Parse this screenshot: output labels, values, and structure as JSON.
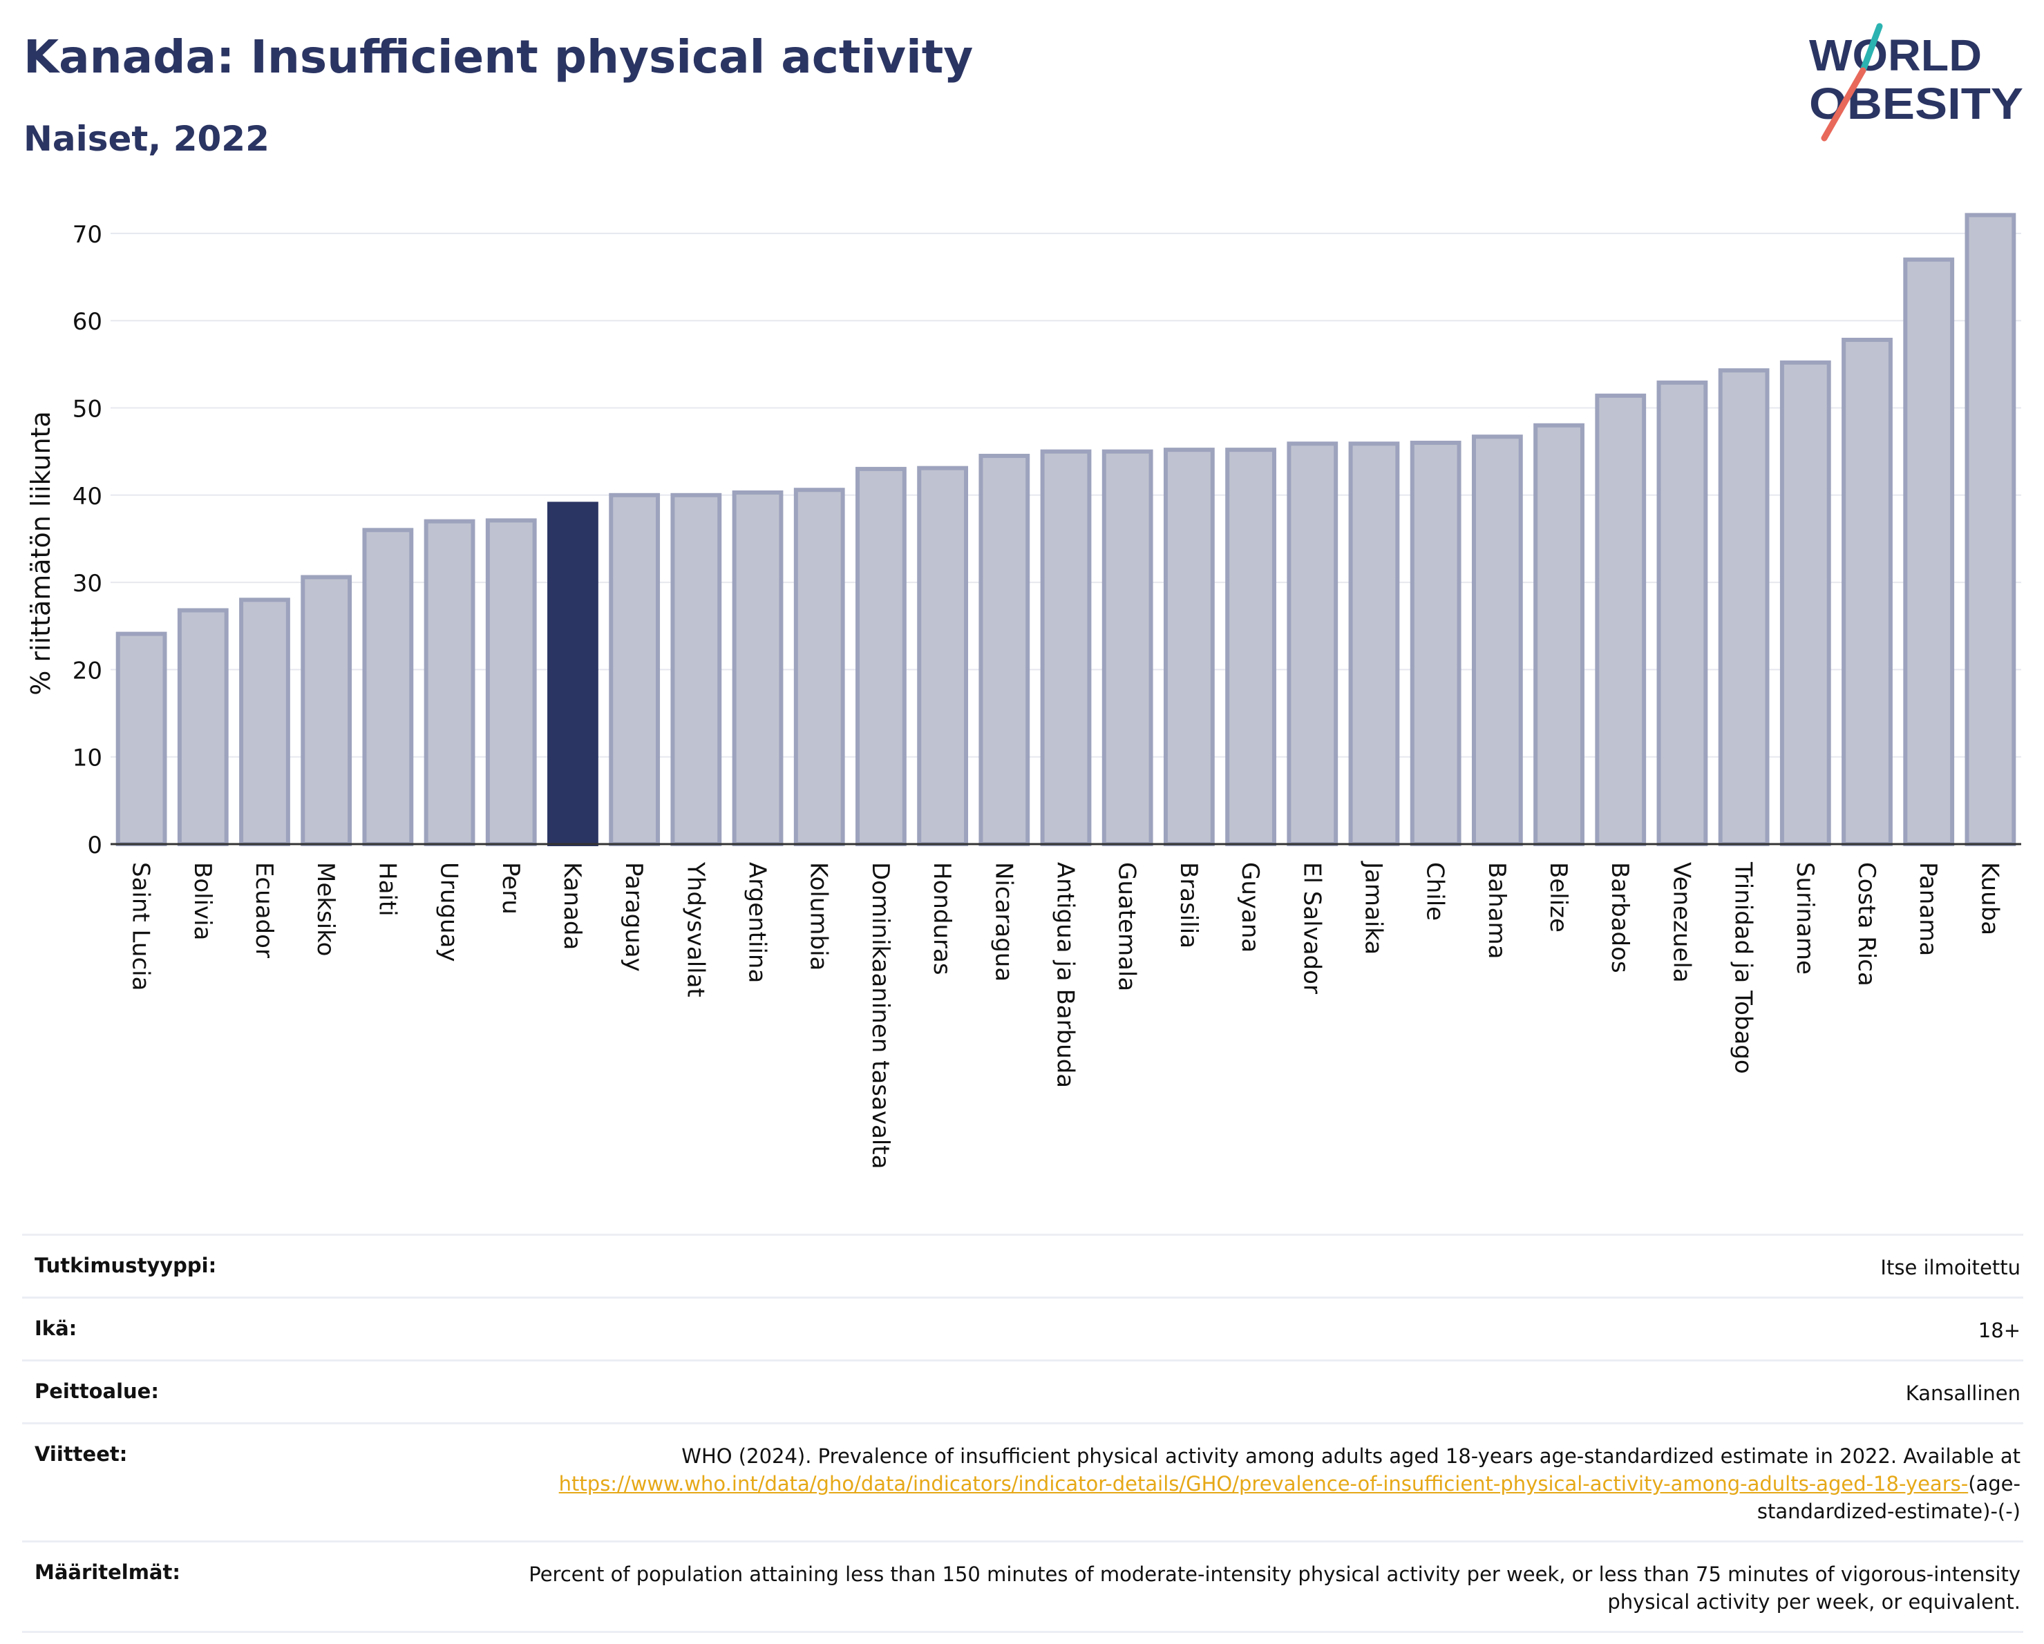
{
  "header": {
    "title": "Kanada: Insufficient physical activity",
    "subtitle": "Naiset, 2022"
  },
  "logo": {
    "line1": "WORLD",
    "line2": "OBESITY",
    "accent_colors": [
      "#2bb3b1",
      "#e8685a"
    ]
  },
  "colors": {
    "bar_default": "#bfc2d0",
    "bar_stroke": "#9da3bd",
    "bar_highlight": "#2b3563",
    "text_primary": "#2b3563",
    "link": "#e6a817"
  },
  "chart_data": {
    "type": "bar",
    "title": "",
    "xlabel": "",
    "ylabel": "% riittämätön liikunta",
    "ylim": [
      0,
      73
    ],
    "yticks": [
      0,
      10,
      20,
      30,
      40,
      50,
      60,
      70
    ],
    "grid": true,
    "highlight": "Kanada",
    "categories": [
      "Saint Lucia",
      "Bolivia",
      "Ecuador",
      "Meksiko",
      "Haiti",
      "Uruguay",
      "Peru",
      "Kanada",
      "Paraguay",
      "Yhdysvallat",
      "Argentiina",
      "Kolumbia",
      "Dominikaaninen tasavalta",
      "Honduras",
      "Nicaragua",
      "Antigua ja Barbuda",
      "Guatemala",
      "Brasilia",
      "Guyana",
      "El Salvador",
      "Jamaika",
      "Chile",
      "Bahama",
      "Belize",
      "Barbados",
      "Venezuela",
      "Trinidad ja Tobago",
      "Suriname",
      "Costa Rica",
      "Panama",
      "Kuuba"
    ],
    "values": [
      24.1,
      26.8,
      28.0,
      30.6,
      36.0,
      37.0,
      37.1,
      39.0,
      40.0,
      40.0,
      40.3,
      40.6,
      43.0,
      43.1,
      44.5,
      45.0,
      45.0,
      45.2,
      45.2,
      45.9,
      45.9,
      46.0,
      46.7,
      48.0,
      51.4,
      52.9,
      54.3,
      55.2,
      57.8,
      67.0,
      72.1
    ]
  },
  "info_table": {
    "rows": [
      {
        "label": "Tutkimustyyppi:",
        "value": "Itse ilmoitettu"
      },
      {
        "label": "Ikä:",
        "value": "18+"
      },
      {
        "label": "Peittoalue:",
        "value": "Kansallinen"
      }
    ],
    "references": {
      "label": "Viitteet:",
      "text": "WHO (2024). Prevalence of insufficient physical activity among adults aged 18-years age-standardized estimate in 2022. Available at",
      "link_text": "https://www.who.int/data/gho/data/indicators/indicator-details/GHO/prevalence-of-insufficient-physical-activity-among-adults-aged-18-years-",
      "suffix": "(age-standardized-estimate)-(-)"
    },
    "definitions": {
      "label": "Määritelmät:",
      "value": "Percent of population attaining less than 150 minutes of moderate-intensity physical activity per week, or less than 75 minutes of vigorous-intensity physical activity per week, or equivalent."
    }
  }
}
